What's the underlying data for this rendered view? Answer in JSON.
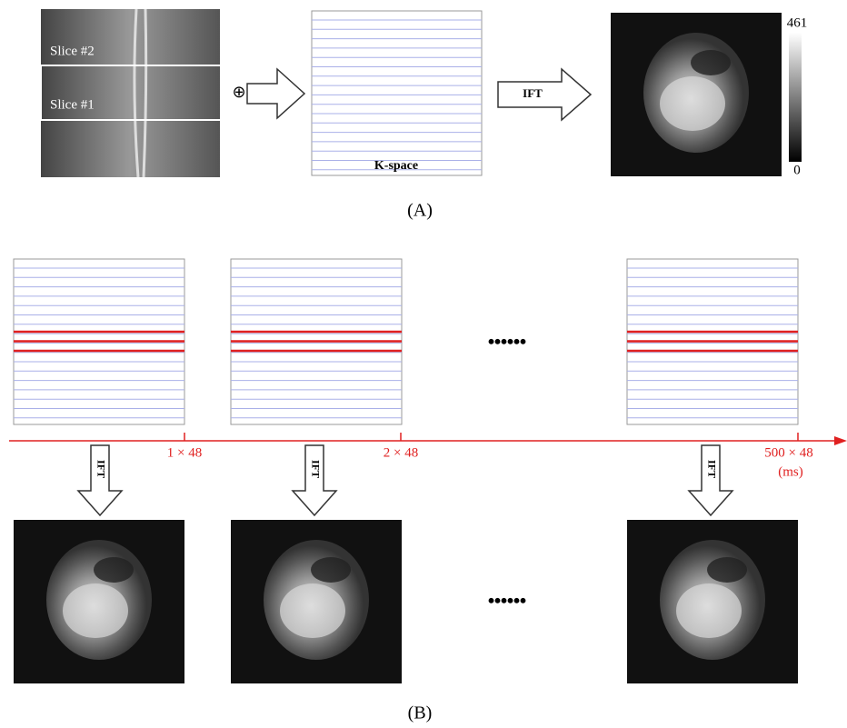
{
  "panel_a": {
    "slice_labels": [
      "Slice #2",
      "Slice #1"
    ],
    "sum_symbol": "⊕",
    "kspace_label": "K-space",
    "ift_label": "IFT",
    "colorbar": {
      "max_label": "461",
      "min_label": "0"
    },
    "caption": "(A)"
  },
  "panel_b": {
    "time_labels": [
      "1 × 48",
      "2 × 48",
      "500 × 48"
    ],
    "time_unit": "(ms)",
    "ift_labels": [
      "IFT",
      "IFT",
      "IFT"
    ],
    "ellipsis_top": "......",
    "ellipsis_bottom": "......",
    "caption": "(B)"
  }
}
